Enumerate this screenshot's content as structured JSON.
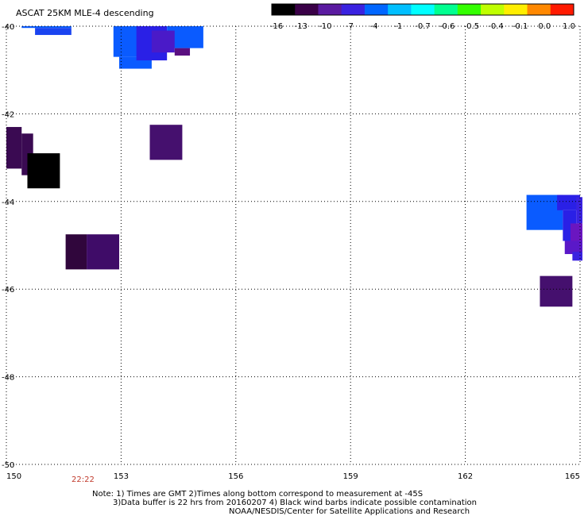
{
  "title": "ASCAT 25KM MLE-4 descending",
  "colorbar": {
    "labels": [
      "-16",
      "-13",
      "-10",
      "-7",
      "-4",
      "-1",
      "-0.7",
      "-0.6",
      "-0.5",
      "-0.4",
      "-0.1",
      "0.0",
      "1.0"
    ],
    "colors": [
      "#000000",
      "#3a0047",
      "#5a1aa0",
      "#3a22e0",
      "#0066ff",
      "#00bfff",
      "#00ffff",
      "#00ff90",
      "#33ff00",
      "#bfff00",
      "#ffee00",
      "#ff8800",
      "#ff1a00"
    ]
  },
  "axes": {
    "lon_ticks": [
      "150",
      "153",
      "156",
      "159",
      "162",
      "165"
    ],
    "lat_ticks": [
      "-40",
      "-42",
      "-44",
      "-46",
      "-48",
      "-50"
    ],
    "grid": "dotted",
    "lon_range": [
      150,
      165
    ],
    "lat_range": [
      -50,
      -40
    ]
  },
  "time_label": "22:22",
  "notes": [
    "Note: 1) Times are GMT 2)Times along bottom correspond to measurement at -45S",
    "3)Data buffer is 22 hrs from 20160207 4) Black wind barbs indicate possible contamination",
    "NOAA/NESDIS/Center for Satellite Applications and Research"
  ],
  "cells": [
    {
      "lon0": 150.4,
      "lon1": 151.7,
      "lat0": -40.0,
      "lat1": -40.04,
      "color": "#0a5bff"
    },
    {
      "lon0": 150.75,
      "lon1": 151.7,
      "lat0": -40.04,
      "lat1": -40.2,
      "color": "#1a44f0"
    },
    {
      "lon0": 152.8,
      "lon1": 153.5,
      "lat0": -40.0,
      "lat1": -40.7,
      "color": "#0a5bff"
    },
    {
      "lon0": 152.95,
      "lon1": 153.8,
      "lat0": -40.7,
      "lat1": -40.97,
      "color": "#0a5bff"
    },
    {
      "lon0": 153.4,
      "lon1": 154.2,
      "lat0": -40.0,
      "lat1": -40.78,
      "color": "#2a20e6"
    },
    {
      "lon0": 154.2,
      "lon1": 155.15,
      "lat0": -40.0,
      "lat1": -40.5,
      "color": "#0a5bff"
    },
    {
      "lon0": 153.8,
      "lon1": 154.4,
      "lat0": -40.1,
      "lat1": -40.6,
      "color": "#4a1ac8"
    },
    {
      "lon0": 154.4,
      "lon1": 154.8,
      "lat0": -40.5,
      "lat1": -40.67,
      "color": "#5a0f80"
    },
    {
      "lon0": 153.75,
      "lon1": 154.6,
      "lat0": -42.25,
      "lat1": -43.05,
      "color": "#45106e"
    },
    {
      "lon0": 149.95,
      "lon1": 150.4,
      "lat0": -42.3,
      "lat1": -43.25,
      "color": "#3a0a52"
    },
    {
      "lon0": 150.4,
      "lon1": 150.7,
      "lat0": -42.45,
      "lat1": -43.4,
      "color": "#3a0a52"
    },
    {
      "lon0": 150.55,
      "lon1": 151.4,
      "lat0": -42.9,
      "lat1": -43.7,
      "color": "#000000"
    },
    {
      "lon0": 151.55,
      "lon1": 152.1,
      "lat0": -44.75,
      "lat1": -45.55,
      "color": "#30063c"
    },
    {
      "lon0": 152.1,
      "lon1": 152.95,
      "lat0": -44.75,
      "lat1": -45.55,
      "color": "#3f0c68"
    },
    {
      "lon0": 163.6,
      "lon1": 164.55,
      "lat0": -43.85,
      "lat1": -44.65,
      "color": "#0a5bff"
    },
    {
      "lon0": 164.4,
      "lon1": 165.0,
      "lat0": -43.85,
      "lat1": -44.2,
      "color": "#2a20e6"
    },
    {
      "lon0": 164.55,
      "lon1": 164.9,
      "lat0": -44.2,
      "lat1": -44.9,
      "color": "#2a20e6"
    },
    {
      "lon0": 164.9,
      "lon1": 165.1,
      "lat0": -43.9,
      "lat1": -44.5,
      "color": "#3a22e0"
    },
    {
      "lon0": 164.75,
      "lon1": 165.1,
      "lat0": -44.5,
      "lat1": -45.15,
      "color": "#6a16c0"
    },
    {
      "lon0": 164.6,
      "lon1": 165.1,
      "lat0": -44.9,
      "lat1": -45.2,
      "color": "#5a18c8"
    },
    {
      "lon0": 164.8,
      "lon1": 165.1,
      "lat0": -45.15,
      "lat1": -45.35,
      "color": "#3a22e0"
    },
    {
      "lon0": 163.95,
      "lon1": 164.8,
      "lat0": -45.7,
      "lat1": -46.4,
      "color": "#45106e"
    }
  ]
}
